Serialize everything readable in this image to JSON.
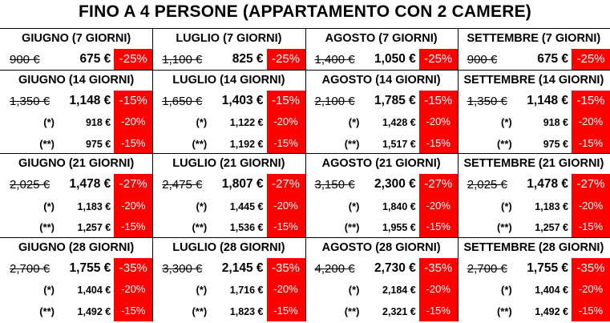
{
  "title": "FINO A 4 PERSONE (APPARTAMENTO CON 2 CAMERE)",
  "groups": [
    {
      "blocks": [
        {
          "header": "GIUGNO (7 GIORNI)",
          "rows": [
            {
              "old": "900 €",
              "price": "675 €",
              "discount": "-25%"
            }
          ]
        },
        {
          "header": "LUGLIO (7 GIORNI)",
          "rows": [
            {
              "old": "1,100 €",
              "price": "825 €",
              "discount": "-25%"
            }
          ]
        },
        {
          "header": "AGOSTO (7 GIORNI)",
          "rows": [
            {
              "old": "1,400 €",
              "price": "1,050 €",
              "discount": "-25%"
            }
          ]
        },
        {
          "header": "SETTEMBRE (7 GIORNI)",
          "rows": [
            {
              "old": "900 €",
              "price": "675 €",
              "discount": "-25%"
            }
          ]
        }
      ]
    },
    {
      "blocks": [
        {
          "header": "GIUGNO (14 GIORNI)",
          "rows": [
            {
              "old": "1,350 €",
              "price": "1,148 €",
              "discount": "-15%"
            },
            {
              "label": "(*)",
              "price": "918 €",
              "discount": "-20%"
            },
            {
              "label": "(**)",
              "price": "975 €",
              "discount": "-15%"
            }
          ]
        },
        {
          "header": "LUGLIO (14 GIORNI)",
          "rows": [
            {
              "old": "1,650 €",
              "price": "1,403 €",
              "discount": "-15%"
            },
            {
              "label": "(*)",
              "price": "1,122 €",
              "discount": "-20%"
            },
            {
              "label": "(**)",
              "price": "1,192 €",
              "discount": "-15%"
            }
          ]
        },
        {
          "header": "AGOSTO (14 GIORNI)",
          "rows": [
            {
              "old": "2,100 €",
              "price": "1,785 €",
              "discount": "-15%"
            },
            {
              "label": "(*)",
              "price": "1,428 €",
              "discount": "-20%"
            },
            {
              "label": "(**)",
              "price": "1,517 €",
              "discount": "-15%"
            }
          ]
        },
        {
          "header": "SETTEMBRE (14 GIORNI)",
          "rows": [
            {
              "old": "1,350 €",
              "price": "1,148 €",
              "discount": "-15%"
            },
            {
              "label": "(*)",
              "price": "918 €",
              "discount": "-20%"
            },
            {
              "label": "(**)",
              "price": "975 €",
              "discount": "-15%"
            }
          ]
        }
      ]
    },
    {
      "blocks": [
        {
          "header": "GIUGNO (21 GIORNI)",
          "rows": [
            {
              "old": "2,025 €",
              "price": "1,478 €",
              "discount": "-27%"
            },
            {
              "label": "(*)",
              "price": "1,183 €",
              "discount": "-20%"
            },
            {
              "label": "(**)",
              "price": "1,257 €",
              "discount": "-15%"
            }
          ]
        },
        {
          "header": "LUGLIO (21 GIORNI)",
          "rows": [
            {
              "old": "2,475 €",
              "price": "1,807 €",
              "discount": "-27%"
            },
            {
              "label": "(*)",
              "price": "1,445 €",
              "discount": "-20%"
            },
            {
              "label": "(**)",
              "price": "1,536 €",
              "discount": "-15%"
            }
          ]
        },
        {
          "header": "AGOSTO (21 GIORNI)",
          "rows": [
            {
              "old": "3,150 €",
              "price": "2,300 €",
              "discount": "-27%"
            },
            {
              "label": "(*)",
              "price": "1,840 €",
              "discount": "-20%"
            },
            {
              "label": "(**)",
              "price": "1,955 €",
              "discount": "-15%"
            }
          ]
        },
        {
          "header": "SETTEMBRE (21 GIORNI)",
          "rows": [
            {
              "old": "2,025 €",
              "price": "1,478 €",
              "discount": "-27%"
            },
            {
              "label": "(*)",
              "price": "1,183 €",
              "discount": "-20%"
            },
            {
              "label": "(**)",
              "price": "1,257 €",
              "discount": "-15%"
            }
          ]
        }
      ]
    },
    {
      "blocks": [
        {
          "header": "GIUGNO (28 GIORNI)",
          "rows": [
            {
              "old": "2,700 €",
              "price": "1,755 €",
              "discount": "-35%"
            },
            {
              "label": "(*)",
              "price": "1,404 €",
              "discount": "-20%"
            },
            {
              "label": "(**)",
              "price": "1,492 €",
              "discount": "-15%"
            }
          ]
        },
        {
          "header": "LUGLIO (28 GIORNI)",
          "rows": [
            {
              "old": "3,300 €",
              "price": "2,145 €",
              "discount": "-35%"
            },
            {
              "label": "(*)",
              "price": "1,716 €",
              "discount": "-20%"
            },
            {
              "label": "(**)",
              "price": "1,823 €",
              "discount": "-15%"
            }
          ]
        },
        {
          "header": "AGOSTO (28 GIORNI)",
          "rows": [
            {
              "old": "4,200 €",
              "price": "2,730 €",
              "discount": "-35%"
            },
            {
              "label": "(*)",
              "price": "2,184 €",
              "discount": "-20%"
            },
            {
              "label": "(**)",
              "price": "2,321 €",
              "discount": "-15%"
            }
          ]
        },
        {
          "header": "SETTEMBRE (28 GIORNI)",
          "rows": [
            {
              "old": "2,700 €",
              "price": "1,755 €",
              "discount": "-35%"
            },
            {
              "label": "(*)",
              "price": "1,404 €",
              "discount": "-20%"
            },
            {
              "label": "(**)",
              "price": "1,492 €",
              "discount": "-15%"
            }
          ]
        }
      ]
    }
  ]
}
